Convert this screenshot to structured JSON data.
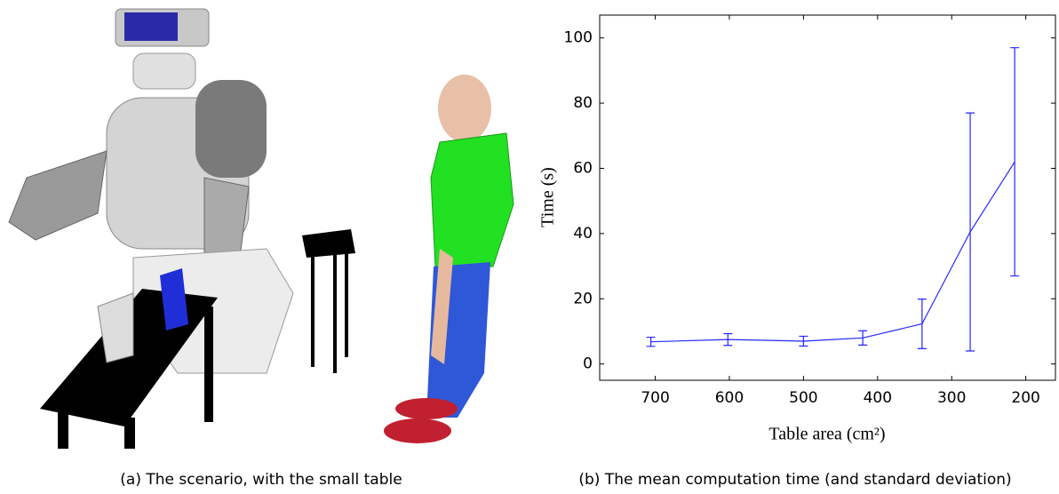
{
  "captions": [
    "(a)  The scenario, with the small table",
    "(b)  The mean computation time (and standard deviation)"
  ],
  "chart_data": {
    "type": "errorbar",
    "xlabel": "Table area (cm²)",
    "ylabel": "Time (s)",
    "x": [
      706,
      602,
      500,
      420,
      340,
      275,
      215
    ],
    "values": [
      6.8,
      7.5,
      7.0,
      8.0,
      12.3,
      40.5,
      62
    ],
    "errors": [
      1.4,
      1.8,
      1.5,
      2.2,
      7.6,
      36.5,
      35
    ],
    "color": "#2626ff",
    "xlim": [
      775,
      160
    ],
    "xticks": [
      700,
      600,
      500,
      400,
      300,
      200
    ],
    "ylim": [
      -5,
      107
    ],
    "yticks": [
      0,
      20,
      40,
      60,
      80,
      100
    ]
  }
}
